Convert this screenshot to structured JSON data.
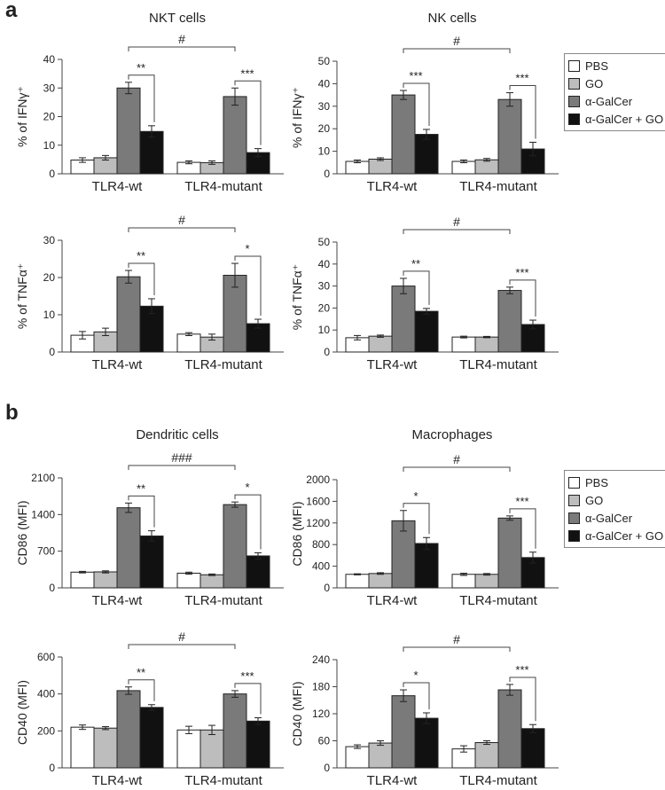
{
  "panel_labels": {
    "a": "a",
    "b": "b"
  },
  "legend": {
    "entries": [
      {
        "label": "PBS",
        "color": "#ffffff"
      },
      {
        "label": "GO",
        "color": "#bdbdbd"
      },
      {
        "label": "α-GalCer",
        "color": "#7a7a7a"
      },
      {
        "label": "α-GalCer + GO",
        "color": "#111111"
      }
    ]
  },
  "chart_data": [
    {
      "type": "bar",
      "id": "nkt-ifn",
      "title": "NKT cells",
      "ylabel": "% of IFNγ⁺",
      "categories": [
        "TLR4-wt",
        "TLR4-mutant"
      ],
      "ylim": [
        0,
        40
      ],
      "yticks": [
        0,
        10,
        20,
        30,
        40
      ],
      "series": [
        {
          "name": "PBS",
          "values": [
            4.8,
            4.0
          ],
          "errors": [
            0.8,
            0.5
          ]
        },
        {
          "name": "GO",
          "values": [
            5.6,
            3.9
          ],
          "errors": [
            0.8,
            0.6
          ]
        },
        {
          "name": "α-GalCer",
          "values": [
            30.0,
            27.0
          ],
          "errors": [
            2.0,
            3.0
          ]
        },
        {
          "name": "α-GalCer + GO",
          "values": [
            14.8,
            7.4
          ],
          "errors": [
            2.0,
            1.4
          ]
        }
      ],
      "sig_within": [
        "**",
        "***"
      ],
      "sig_between": "#"
    },
    {
      "type": "bar",
      "id": "nk-ifn",
      "title": "NK cells",
      "ylabel": "% of IFNγ⁺",
      "categories": [
        "TLR4-wt",
        "TLR4-mutant"
      ],
      "ylim": [
        0,
        50
      ],
      "yticks": [
        0,
        10,
        20,
        30,
        40,
        50
      ],
      "series": [
        {
          "name": "PBS",
          "values": [
            5.5,
            5.5
          ],
          "errors": [
            0.6,
            0.6
          ]
        },
        {
          "name": "GO",
          "values": [
            6.5,
            6.2
          ],
          "errors": [
            0.6,
            0.6
          ]
        },
        {
          "name": "α-GalCer",
          "values": [
            35.0,
            33.0
          ],
          "errors": [
            2.0,
            3.0
          ]
        },
        {
          "name": "α-GalCer + GO",
          "values": [
            17.5,
            11.0
          ],
          "errors": [
            2.2,
            3.0
          ]
        }
      ],
      "sig_within": [
        "***",
        "***"
      ],
      "sig_between": "#"
    },
    {
      "type": "bar",
      "id": "nkt-tnf",
      "title": "",
      "ylabel": "% of TNFα⁺",
      "categories": [
        "TLR4-wt",
        "TLR4-mutant"
      ],
      "ylim": [
        0,
        30
      ],
      "yticks": [
        0,
        10,
        20,
        30
      ],
      "series": [
        {
          "name": "PBS",
          "values": [
            4.5,
            4.8
          ],
          "errors": [
            1.0,
            0.4
          ]
        },
        {
          "name": "GO",
          "values": [
            5.4,
            4.0
          ],
          "errors": [
            1.0,
            0.8
          ]
        },
        {
          "name": "α-GalCer",
          "values": [
            20.2,
            20.6
          ],
          "errors": [
            1.7,
            3.2
          ]
        },
        {
          "name": "α-GalCer + GO",
          "values": [
            12.3,
            7.6
          ],
          "errors": [
            2.0,
            1.2
          ]
        }
      ],
      "sig_within": [
        "**",
        "*"
      ],
      "sig_between": "#"
    },
    {
      "type": "bar",
      "id": "nk-tnf",
      "title": "",
      "ylabel": "% of TNFα⁺",
      "categories": [
        "TLR4-wt",
        "TLR4-mutant"
      ],
      "ylim": [
        0,
        50
      ],
      "yticks": [
        0,
        10,
        20,
        30,
        40,
        50
      ],
      "series": [
        {
          "name": "PBS",
          "values": [
            6.5,
            6.8
          ],
          "errors": [
            1.0,
            0.4
          ]
        },
        {
          "name": "GO",
          "values": [
            7.2,
            6.8
          ],
          "errors": [
            0.5,
            0.3
          ]
        },
        {
          "name": "α-GalCer",
          "values": [
            30.0,
            28.0
          ],
          "errors": [
            3.5,
            1.5
          ]
        },
        {
          "name": "α-GalCer + GO",
          "values": [
            18.5,
            12.5
          ],
          "errors": [
            1.3,
            2.0
          ]
        }
      ],
      "sig_within": [
        "**",
        "***"
      ],
      "sig_between": "#"
    },
    {
      "type": "bar",
      "id": "dc-cd86",
      "title": "Dendritic cells",
      "ylabel": "CD86 (MFI)",
      "categories": [
        "TLR4-wt",
        "TLR4-mutant"
      ],
      "ylim": [
        0,
        2100
      ],
      "yticks": [
        0,
        700,
        1400,
        2100
      ],
      "series": [
        {
          "name": "PBS",
          "values": [
            300,
            280
          ],
          "errors": [
            15,
            20
          ]
        },
        {
          "name": "GO",
          "values": [
            305,
            250
          ],
          "errors": [
            20,
            15
          ]
        },
        {
          "name": "α-GalCer",
          "values": [
            1530,
            1590
          ],
          "errors": [
            90,
            50
          ]
        },
        {
          "name": "α-GalCer + GO",
          "values": [
            990,
            610
          ],
          "errors": [
            100,
            60
          ]
        }
      ],
      "sig_within": [
        "**",
        "*"
      ],
      "sig_between": "###"
    },
    {
      "type": "bar",
      "id": "mac-cd86",
      "title": "Macrophages",
      "ylabel": "CD86 (MFI)",
      "categories": [
        "TLR4-wt",
        "TLR4-mutant"
      ],
      "ylim": [
        0,
        2000
      ],
      "yticks": [
        0,
        400,
        800,
        1200,
        1600,
        2000
      ],
      "series": [
        {
          "name": "PBS",
          "values": [
            250,
            250
          ],
          "errors": [
            10,
            20
          ]
        },
        {
          "name": "GO",
          "values": [
            265,
            250
          ],
          "errors": [
            15,
            15
          ]
        },
        {
          "name": "α-GalCer",
          "values": [
            1240,
            1290
          ],
          "errors": [
            190,
            40
          ]
        },
        {
          "name": "α-GalCer + GO",
          "values": [
            820,
            560
          ],
          "errors": [
            110,
            100
          ]
        }
      ],
      "sig_within": [
        "*",
        "***"
      ],
      "sig_between": "#"
    },
    {
      "type": "bar",
      "id": "dc-cd40",
      "title": "",
      "ylabel": "CD40 (MFI)",
      "categories": [
        "TLR4-wt",
        "TLR4-mutant"
      ],
      "ylim": [
        0,
        600
      ],
      "yticks": [
        0,
        200,
        400,
        600
      ],
      "series": [
        {
          "name": "PBS",
          "values": [
            220,
            205
          ],
          "errors": [
            12,
            20
          ]
        },
        {
          "name": "GO",
          "values": [
            215,
            205
          ],
          "errors": [
            8,
            25
          ]
        },
        {
          "name": "α-GalCer",
          "values": [
            418,
            400
          ],
          "errors": [
            20,
            18
          ]
        },
        {
          "name": "α-GalCer + GO",
          "values": [
            327,
            253
          ],
          "errors": [
            15,
            18
          ]
        }
      ],
      "sig_within": [
        "**",
        "***"
      ],
      "sig_between": "#"
    },
    {
      "type": "bar",
      "id": "mac-cd40",
      "title": "",
      "ylabel": "CD40 (MFI)",
      "categories": [
        "TLR4-wt",
        "TLR4-mutant"
      ],
      "ylim": [
        0,
        240
      ],
      "yticks": [
        0,
        60,
        120,
        180,
        240
      ],
      "series": [
        {
          "name": "PBS",
          "values": [
            47,
            42
          ],
          "errors": [
            4,
            7
          ]
        },
        {
          "name": "GO",
          "values": [
            55,
            56
          ],
          "errors": [
            5,
            4
          ]
        },
        {
          "name": "α-GalCer",
          "values": [
            160,
            173
          ],
          "errors": [
            13,
            12
          ]
        },
        {
          "name": "α-GalCer + GO",
          "values": [
            110,
            87
          ],
          "errors": [
            12,
            9
          ]
        }
      ],
      "sig_within": [
        "*",
        "***"
      ],
      "sig_between": "#"
    }
  ]
}
